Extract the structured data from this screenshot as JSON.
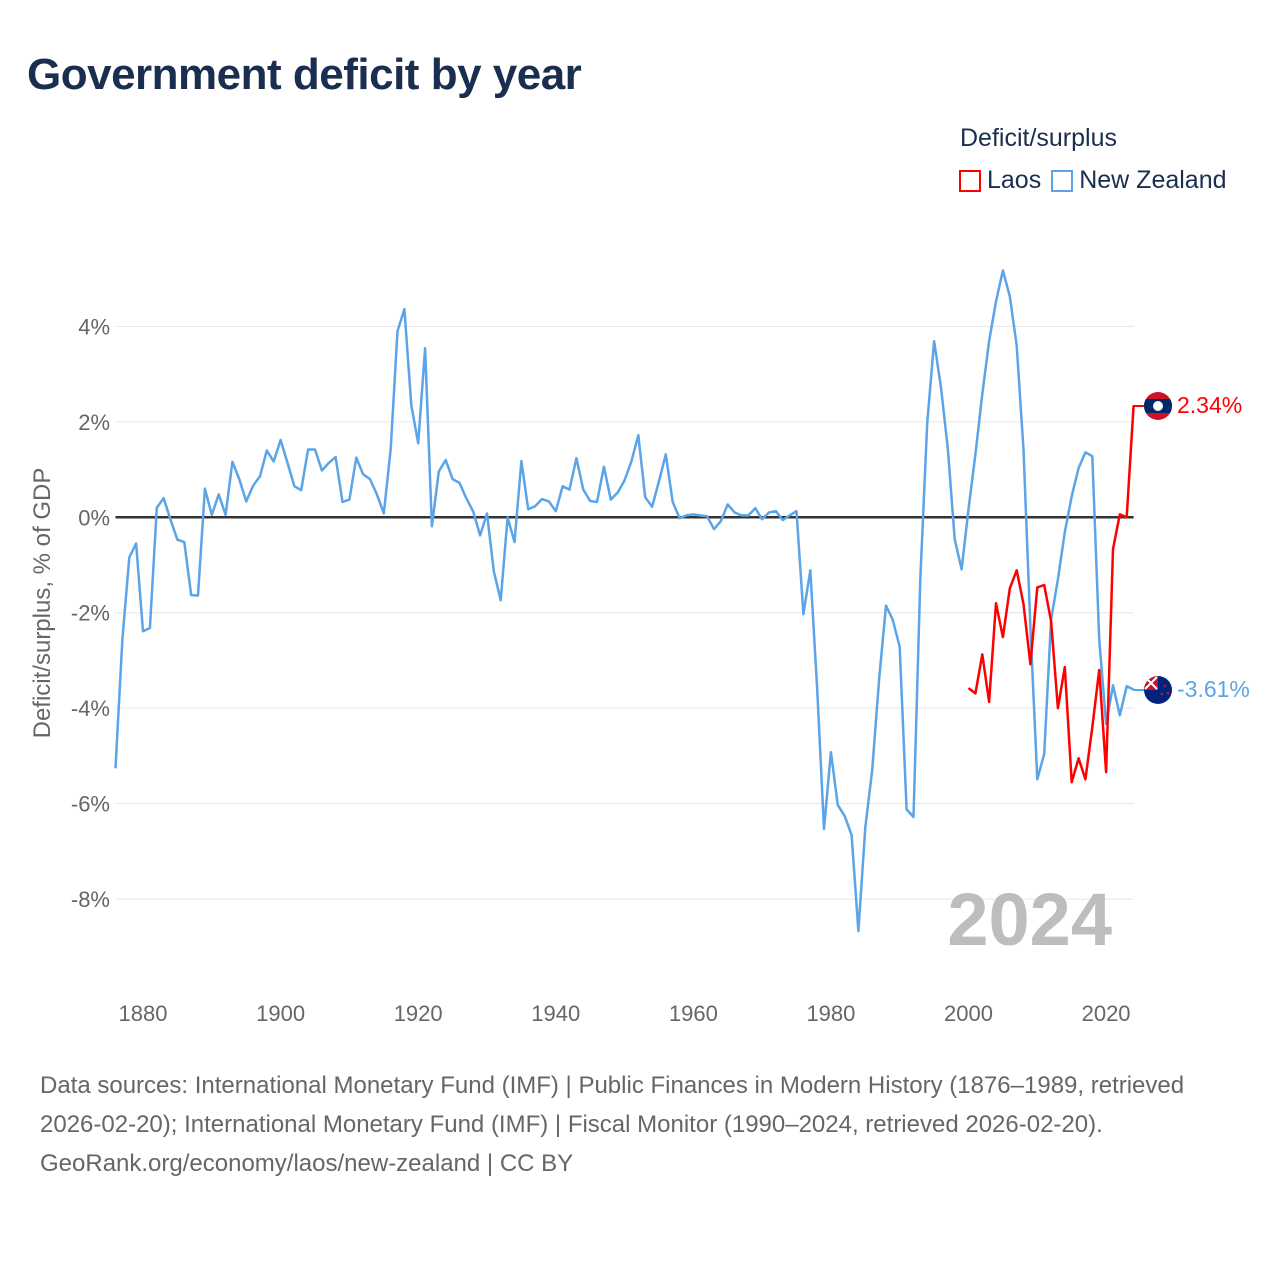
{
  "title": "Government deficit by year",
  "legend": {
    "title": "Deficit/surplus",
    "items": [
      {
        "label": "Laos",
        "color": "#ff0000"
      },
      {
        "label": "New Zealand",
        "color": "#5ba4e8"
      }
    ]
  },
  "year_watermark": "2024",
  "end_labels": {
    "laos": "2.34%",
    "nz": "-3.61%"
  },
  "footer": {
    "sources": "Data sources: International Monetary Fund (IMF) | Public Finances in Modern History (1876–1989, retrieved 2026-02-20); International Monetary Fund (IMF) | Fiscal Monitor (1990–2024, retrieved 2026-02-20).",
    "credit": "GeoRank.org/economy/laos/new-zealand | CC BY"
  },
  "chart_data": {
    "type": "line",
    "title": "Government deficit by year",
    "xlabel": "",
    "ylabel": "Deficit/surplus, % of GDP",
    "xlim": [
      1876,
      2024
    ],
    "ylim": [
      -9.8,
      5.6
    ],
    "xticks": [
      1880,
      1900,
      1920,
      1940,
      1960,
      1980,
      2000,
      2020
    ],
    "xtick_labels": [
      "1880",
      "1900",
      "1920",
      "1940",
      "1960",
      "1980",
      "2000",
      "2020"
    ],
    "yticks": [
      4,
      2,
      0,
      -2,
      -4,
      -6,
      -8
    ],
    "ytick_labels": [
      "4%",
      "2%",
      "0%",
      "-2%",
      "-4%",
      "-6%",
      "-8%"
    ],
    "grid": true,
    "legend_position": "top-right",
    "series": [
      {
        "name": "New Zealand",
        "color": "#5ba4e8",
        "start_year": 1876,
        "values": [
          -5.26,
          -2.55,
          -0.84,
          -0.55,
          -2.39,
          -2.32,
          0.2,
          0.4,
          -0.05,
          -0.47,
          -0.52,
          -1.63,
          -1.64,
          0.6,
          0.05,
          0.48,
          0.05,
          1.16,
          0.8,
          0.33,
          0.66,
          0.86,
          1.4,
          1.17,
          1.62,
          1.14,
          0.65,
          0.57,
          1.42,
          1.42,
          0.98,
          1.14,
          1.26,
          0.32,
          0.37,
          1.25,
          0.9,
          0.8,
          0.48,
          0.08,
          1.43,
          3.9,
          4.36,
          2.35,
          1.55,
          3.54,
          -0.19,
          0.96,
          1.2,
          0.8,
          0.72,
          0.4,
          0.12,
          -0.38,
          0.08,
          -1.13,
          -1.74,
          0,
          -0.52,
          1.18,
          0.17,
          0.23,
          0.38,
          0.33,
          0.13,
          0.65,
          0.58,
          1.24,
          0.58,
          0.34,
          0.32,
          1.06,
          0.37,
          0.52,
          0.77,
          1.17,
          1.72,
          0.42,
          0.22,
          0.75,
          1.32,
          0.32,
          -0.02,
          0.04,
          0.06,
          0.04,
          0.02,
          -0.25,
          -0.08,
          0.27,
          0.1,
          0.04,
          0.04,
          0.19,
          -0.04,
          0.1,
          0.13,
          -0.06,
          0.04,
          0.13,
          -2.03,
          -1.11,
          -3.6,
          -6.53,
          -4.92,
          -6.03,
          -6.26,
          -6.66,
          -8.67,
          -6.5,
          -5.3,
          -3.4,
          -1.85,
          -2.15,
          -2.72,
          -6.12,
          -6.28,
          -1.3,
          1.97,
          3.69,
          2.72,
          1.42,
          -0.46,
          -1.09,
          0.17,
          1.32,
          2.58,
          3.69,
          4.52,
          5.17,
          4.63,
          3.6,
          1.42,
          -2.3,
          -5.49,
          -4.96,
          -2.14,
          -1.3,
          -0.31,
          0.44,
          1.03,
          1.36,
          1.28,
          -2.55,
          -4.33,
          -3.52,
          -4.15,
          -3.54,
          -3.61
        ]
      },
      {
        "name": "Laos",
        "color": "#ff0000",
        "start_year": 2000,
        "values": [
          -3.58,
          -3.69,
          -2.87,
          -3.87,
          -1.8,
          -2.51,
          -1.49,
          -1.11,
          -1.82,
          -3.08,
          -1.47,
          -1.42,
          -2.18,
          -4.0,
          -3.14,
          -5.55,
          -5.05,
          -5.49,
          -4.4,
          -3.2,
          -5.34,
          -0.67,
          0.06,
          0.0,
          2.34
        ]
      }
    ]
  }
}
